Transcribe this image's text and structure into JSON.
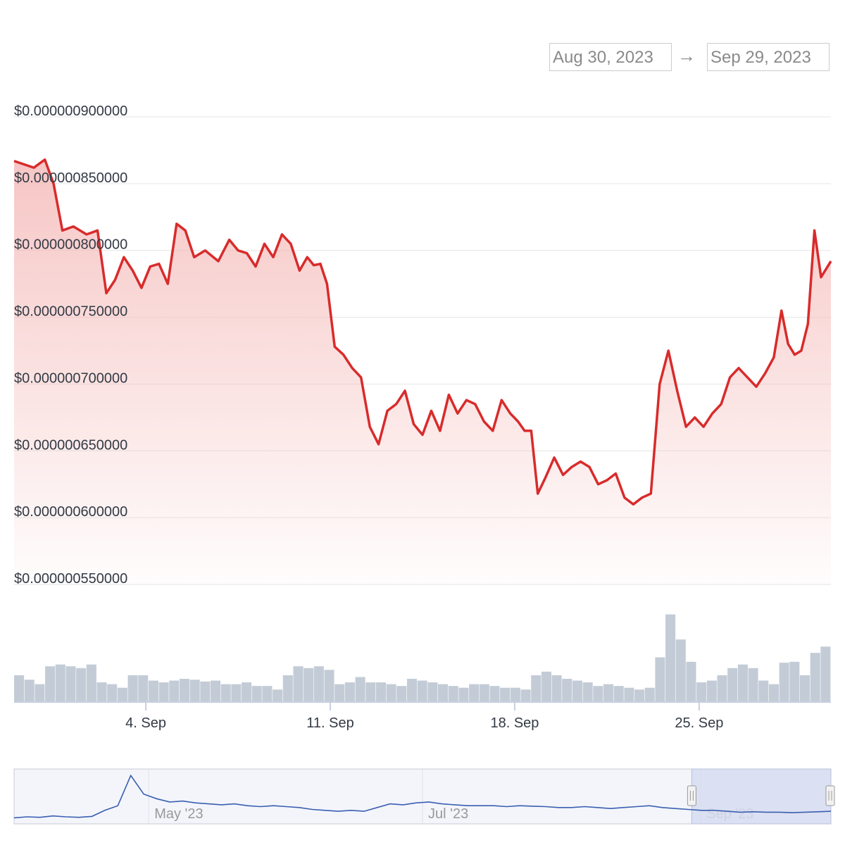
{
  "range_selector": {
    "from": "Aug 30, 2023",
    "arrow": "→",
    "to": "Sep 29, 2023"
  },
  "colors": {
    "price_line": "#d82b2b",
    "price_fill_top": "#f3b3b1",
    "volume": "#b9c3cf",
    "navigator_line": "#3a5fb0",
    "navigator_selection": "#d6dcf0",
    "grid": "#e6e6e6"
  },
  "chart_data": {
    "type": "line",
    "title": "",
    "xlabel": "",
    "ylabel": "",
    "x_range": [
      "2023-08-30",
      "2023-09-29"
    ],
    "ylim": [
      5.5e-07,
      9e-07
    ],
    "y_ticks": [
      "$0.000000900000",
      "$0.000000850000",
      "$0.000000800000",
      "$0.000000750000",
      "$0.000000700000",
      "$0.000000650000",
      "$0.000000600000",
      "$0.000000550000"
    ],
    "y_tick_values": [
      9e-07,
      8.5e-07,
      8e-07,
      7.5e-07,
      7e-07,
      6.5e-07,
      6e-07,
      5.5e-07
    ],
    "x_ticks": [
      "4. Sep",
      "11. Sep",
      "18. Sep",
      "25. Sep"
    ],
    "x_tick_dates": [
      "2023-09-04",
      "2023-09-11",
      "2023-09-18",
      "2023-09-25"
    ],
    "series": [
      {
        "values": [
          [
            "2023-08-30",
            8.67e-07
          ],
          [
            "2023-08-30",
            8.62e-07
          ],
          [
            "2023-08-31",
            8.68e-07
          ],
          [
            "2023-08-31",
            8.5e-07
          ],
          [
            "2023-08-31",
            8.15e-07
          ],
          [
            "2023-09-01",
            8.18e-07
          ],
          [
            "2023-09-01",
            8.12e-07
          ],
          [
            "2023-09-02",
            8.15e-07
          ],
          [
            "2023-09-02",
            7.68e-07
          ],
          [
            "2023-09-02",
            7.78e-07
          ],
          [
            "2023-09-03",
            7.95e-07
          ],
          [
            "2023-09-03",
            7.85e-07
          ],
          [
            "2023-09-03",
            7.72e-07
          ],
          [
            "2023-09-04",
            7.88e-07
          ],
          [
            "2023-09-04",
            7.9e-07
          ],
          [
            "2023-09-04",
            7.75e-07
          ],
          [
            "2023-09-05",
            8.2e-07
          ],
          [
            "2023-09-05",
            8.15e-07
          ],
          [
            "2023-09-05",
            7.95e-07
          ],
          [
            "2023-09-06",
            8e-07
          ],
          [
            "2023-09-06",
            7.92e-07
          ],
          [
            "2023-09-07",
            8.08e-07
          ],
          [
            "2023-09-07",
            8e-07
          ],
          [
            "2023-09-07",
            7.98e-07
          ],
          [
            "2023-09-08",
            7.88e-07
          ],
          [
            "2023-09-08",
            8.05e-07
          ],
          [
            "2023-09-08",
            7.95e-07
          ],
          [
            "2023-09-09",
            8.12e-07
          ],
          [
            "2023-09-09",
            8.05e-07
          ],
          [
            "2023-09-09",
            7.85e-07
          ],
          [
            "2023-09-10",
            7.95e-07
          ],
          [
            "2023-09-10",
            7.89e-07
          ],
          [
            "2023-09-10",
            7.9e-07
          ],
          [
            "2023-09-10",
            7.75e-07
          ],
          [
            "2023-09-11",
            7.28e-07
          ],
          [
            "2023-09-11",
            7.22e-07
          ],
          [
            "2023-09-11",
            7.12e-07
          ],
          [
            "2023-09-12",
            7.05e-07
          ],
          [
            "2023-09-12",
            6.68e-07
          ],
          [
            "2023-09-12",
            6.55e-07
          ],
          [
            "2023-09-13",
            6.8e-07
          ],
          [
            "2023-09-13",
            6.85e-07
          ],
          [
            "2023-09-13",
            6.95e-07
          ],
          [
            "2023-09-14",
            6.7e-07
          ],
          [
            "2023-09-14",
            6.62e-07
          ],
          [
            "2023-09-14",
            6.8e-07
          ],
          [
            "2023-09-15",
            6.65e-07
          ],
          [
            "2023-09-15",
            6.92e-07
          ],
          [
            "2023-09-15",
            6.78e-07
          ],
          [
            "2023-09-16",
            6.88e-07
          ],
          [
            "2023-09-16",
            6.85e-07
          ],
          [
            "2023-09-16",
            6.72e-07
          ],
          [
            "2023-09-17",
            6.65e-07
          ],
          [
            "2023-09-17",
            6.88e-07
          ],
          [
            "2023-09-17",
            6.78e-07
          ],
          [
            "2023-09-18",
            6.72e-07
          ],
          [
            "2023-09-18",
            6.65e-07
          ],
          [
            "2023-09-18",
            6.65e-07
          ],
          [
            "2023-09-18",
            6.18e-07
          ],
          [
            "2023-09-19",
            6.3e-07
          ],
          [
            "2023-09-19",
            6.45e-07
          ],
          [
            "2023-09-19",
            6.32e-07
          ],
          [
            "2023-09-20",
            6.38e-07
          ],
          [
            "2023-09-20",
            6.42e-07
          ],
          [
            "2023-09-20",
            6.38e-07
          ],
          [
            "2023-09-21",
            6.25e-07
          ],
          [
            "2023-09-21",
            6.28e-07
          ],
          [
            "2023-09-21",
            6.33e-07
          ],
          [
            "2023-09-22",
            6.15e-07
          ],
          [
            "2023-09-22",
            6.1e-07
          ],
          [
            "2023-09-22",
            6.15e-07
          ],
          [
            "2023-09-23",
            6.18e-07
          ],
          [
            "2023-09-23",
            7e-07
          ],
          [
            "2023-09-23",
            7.25e-07
          ],
          [
            "2023-09-24",
            6.95e-07
          ],
          [
            "2023-09-24",
            6.68e-07
          ],
          [
            "2023-09-24",
            6.75e-07
          ],
          [
            "2023-09-25",
            6.68e-07
          ],
          [
            "2023-09-25",
            6.78e-07
          ],
          [
            "2023-09-25",
            6.85e-07
          ],
          [
            "2023-09-26",
            7.05e-07
          ],
          [
            "2023-09-26",
            7.12e-07
          ],
          [
            "2023-09-26",
            7.05e-07
          ],
          [
            "2023-09-27",
            6.98e-07
          ],
          [
            "2023-09-27",
            7.08e-07
          ],
          [
            "2023-09-27",
            7.2e-07
          ],
          [
            "2023-09-28",
            7.55e-07
          ],
          [
            "2023-09-28",
            7.3e-07
          ],
          [
            "2023-09-28",
            7.22e-07
          ],
          [
            "2023-09-28",
            7.25e-07
          ],
          [
            "2023-09-29",
            7.45e-07
          ],
          [
            "2023-09-29",
            8.15e-07
          ],
          [
            "2023-09-29",
            7.8e-07
          ],
          [
            "2023-09-29",
            7.92e-07
          ]
        ]
      }
    ],
    "volume_relative": [
      0.3,
      0.25,
      0.2,
      0.4,
      0.42,
      0.4,
      0.38,
      0.42,
      0.22,
      0.2,
      0.16,
      0.3,
      0.3,
      0.24,
      0.22,
      0.24,
      0.26,
      0.25,
      0.23,
      0.24,
      0.2,
      0.2,
      0.22,
      0.18,
      0.18,
      0.14,
      0.3,
      0.4,
      0.38,
      0.4,
      0.36,
      0.2,
      0.22,
      0.28,
      0.22,
      0.22,
      0.2,
      0.18,
      0.26,
      0.24,
      0.22,
      0.2,
      0.18,
      0.16,
      0.2,
      0.2,
      0.18,
      0.16,
      0.16,
      0.14,
      0.3,
      0.34,
      0.3,
      0.26,
      0.24,
      0.22,
      0.18,
      0.2,
      0.18,
      0.16,
      0.14,
      0.16,
      0.5,
      0.98,
      0.7,
      0.45,
      0.22,
      0.24,
      0.3,
      0.38,
      0.42,
      0.38,
      0.24,
      0.2,
      0.44,
      0.45,
      0.3,
      0.55,
      0.62
    ],
    "navigator": {
      "x_ticks": [
        "May '23",
        "Jul '23",
        "Sep '23"
      ],
      "x_tick_dates": [
        "2023-05-01",
        "2023-07-01",
        "2023-09-01"
      ],
      "selected_from": "2023-08-30",
      "selected_to": "2023-09-29",
      "values_relative": [
        0.04,
        0.06,
        0.05,
        0.08,
        0.06,
        0.05,
        0.07,
        0.2,
        0.3,
        0.95,
        0.55,
        0.45,
        0.38,
        0.4,
        0.36,
        0.34,
        0.32,
        0.34,
        0.3,
        0.28,
        0.3,
        0.28,
        0.26,
        0.22,
        0.2,
        0.18,
        0.2,
        0.18,
        0.26,
        0.34,
        0.32,
        0.36,
        0.38,
        0.34,
        0.32,
        0.3,
        0.3,
        0.3,
        0.28,
        0.3,
        0.29,
        0.28,
        0.26,
        0.26,
        0.28,
        0.26,
        0.24,
        0.26,
        0.28,
        0.3,
        0.26,
        0.24,
        0.22,
        0.2,
        0.2,
        0.18,
        0.16,
        0.17,
        0.16,
        0.16,
        0.15,
        0.16,
        0.17,
        0.18
      ]
    }
  }
}
